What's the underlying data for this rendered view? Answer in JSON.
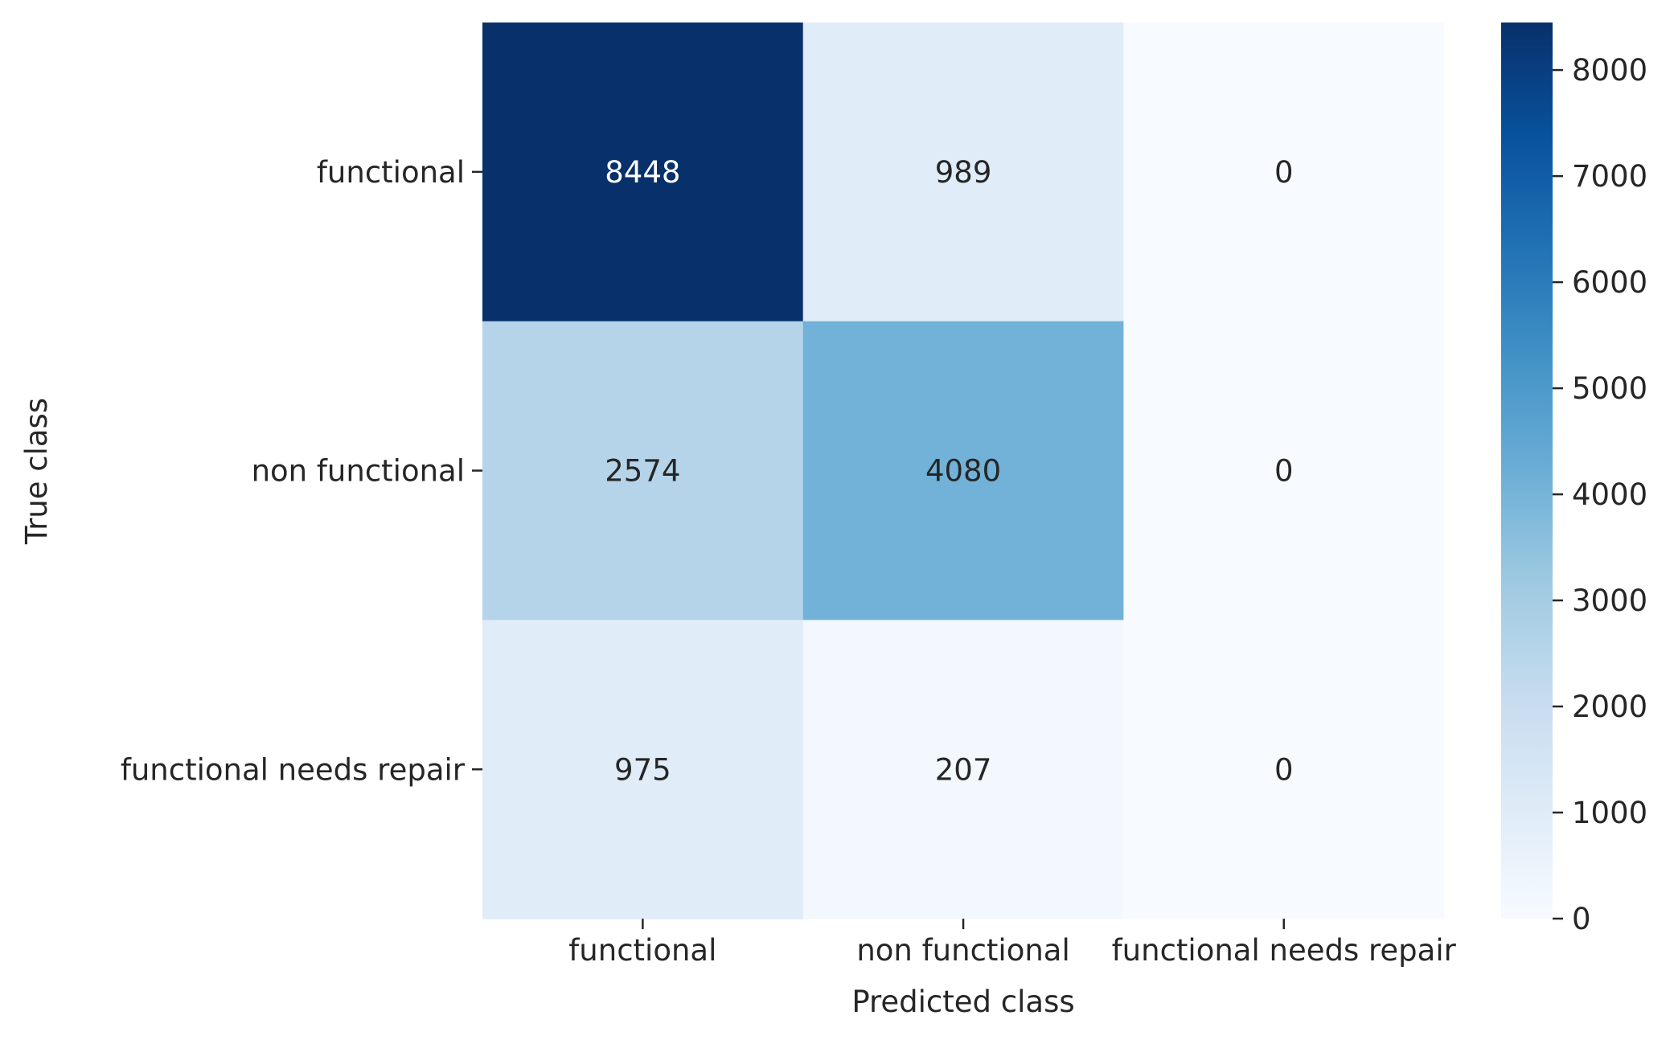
{
  "chart_data": {
    "type": "heatmap",
    "title": "",
    "xlabel": "Predicted class",
    "ylabel": "True class",
    "x_categories": [
      "functional",
      "non functional",
      "functional needs repair"
    ],
    "y_categories": [
      "functional",
      "non functional",
      "functional needs repair"
    ],
    "values": [
      [
        8448,
        989,
        0
      ],
      [
        2574,
        4080,
        0
      ],
      [
        975,
        207,
        0
      ]
    ],
    "colormap": "Blues",
    "color_range": [
      0,
      8448
    ],
    "colorbar_ticks": [
      0,
      1000,
      2000,
      3000,
      4000,
      5000,
      6000,
      7000,
      8000
    ],
    "grid": false
  }
}
